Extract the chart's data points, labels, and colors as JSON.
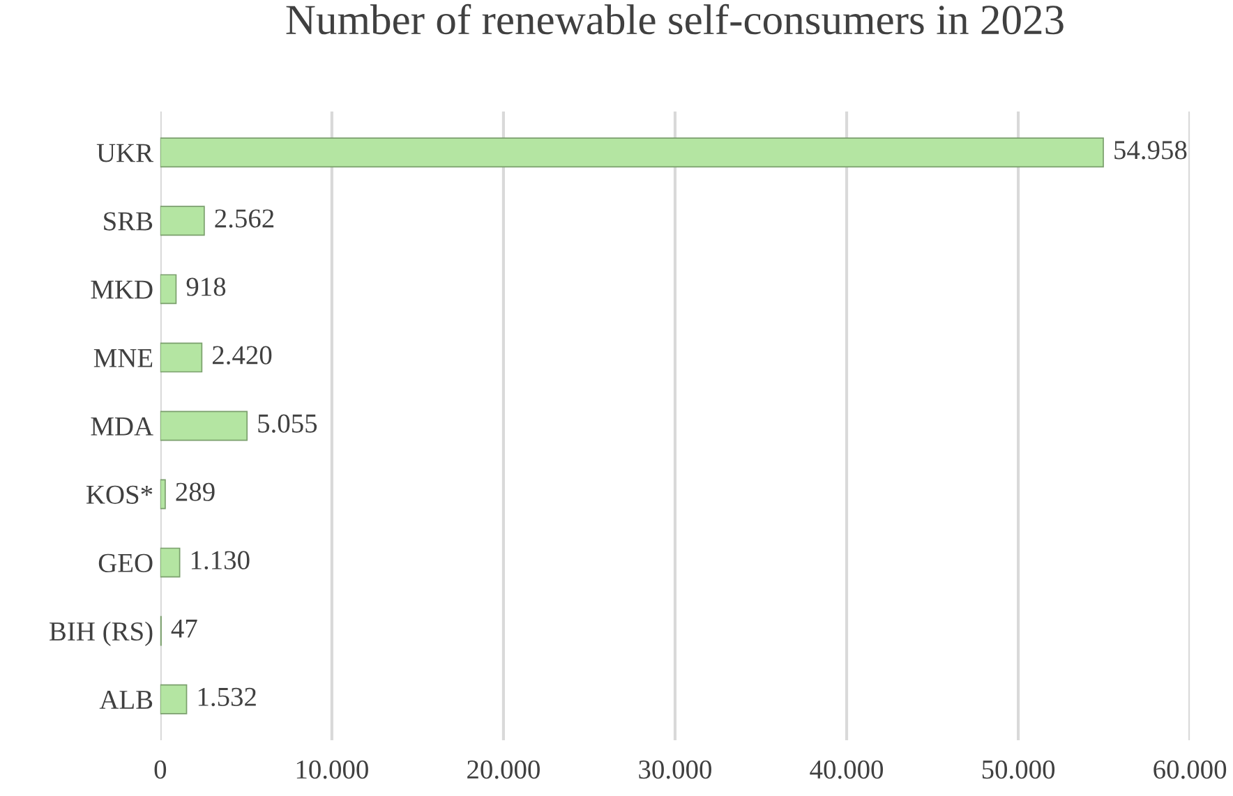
{
  "chart_data": {
    "type": "bar",
    "orientation": "horizontal",
    "title": "Number of renewable self-consumers in 2023",
    "categories": [
      "UKR",
      "SRB",
      "MKD",
      "MNE",
      "MDA",
      "KOS*",
      "GEO",
      "BIH (RS)",
      "ALB"
    ],
    "values": [
      54958,
      2562,
      918,
      2420,
      5055,
      289,
      1130,
      47,
      1532
    ],
    "value_labels": [
      "54.958",
      "2.562",
      "918",
      "2.420",
      "5.055",
      "289",
      "1.130",
      "47",
      "1.532"
    ],
    "color": "#b4e5a2",
    "xlim": [
      0,
      60000
    ],
    "xticks": [
      0,
      {
        "value": 10000,
        "label": "10.000"
      },
      {
        "value": 20000,
        "label": "20.000"
      },
      {
        "value": 30000,
        "label": "30.000"
      },
      {
        "value": 40000,
        "label": "40.000"
      },
      {
        "value": 50000,
        "label": "50.000"
      },
      {
        "value": 60000,
        "label": "60.000"
      }
    ],
    "grid": "x"
  }
}
